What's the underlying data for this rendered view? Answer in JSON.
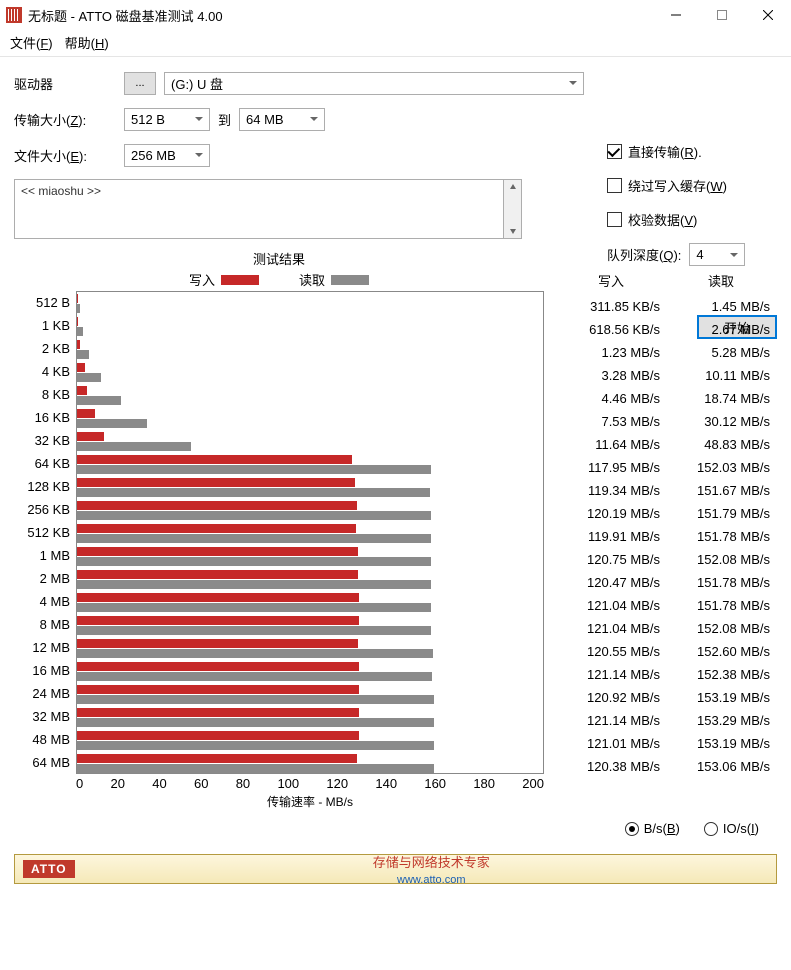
{
  "window": {
    "title": "无标题 - ATTO 磁盘基准测试 4.00"
  },
  "menu": {
    "file": "文件(F)",
    "help": "帮助(H)"
  },
  "form": {
    "drive_label": "驱动器",
    "browse": "...",
    "drive_value": "(G:) U 盘",
    "xfer_label": "传输大小(Z):",
    "xfer_from": "512 B",
    "to_label": "到",
    "xfer_to": "64 MB",
    "file_label": "文件大小(E):",
    "file_value": "256 MB"
  },
  "opts": {
    "direct": "直接传输(R).",
    "bypass": "绕过写入缓存(W)",
    "verify": "校验数据(V)",
    "qd_label": "队列深度(Q):",
    "qd_value": "4"
  },
  "desc": {
    "text": "<< miaoshu >>"
  },
  "start": "开始",
  "chart": {
    "title": "测试结果",
    "write_label": "写入",
    "read_label": "读取",
    "write_color": "#c62828",
    "read_color": "#8a8a8a",
    "xlabel": "传输速率 - MB/s",
    "xmax": 200,
    "xticks": [
      "0",
      "20",
      "40",
      "60",
      "80",
      "100",
      "120",
      "140",
      "160",
      "180",
      "200"
    ],
    "rows": [
      {
        "label": "512 B",
        "write_val": 0.31,
        "read_val": 1.45,
        "write_txt": "311.85 KB/s",
        "read_txt": "1.45 MB/s"
      },
      {
        "label": "1 KB",
        "write_val": 0.62,
        "read_val": 2.67,
        "write_txt": "618.56 KB/s",
        "read_txt": "2.67 MB/s"
      },
      {
        "label": "2 KB",
        "write_val": 1.23,
        "read_val": 5.28,
        "write_txt": "1.23 MB/s",
        "read_txt": "5.28 MB/s"
      },
      {
        "label": "4 KB",
        "write_val": 3.28,
        "read_val": 10.11,
        "write_txt": "3.28 MB/s",
        "read_txt": "10.11 MB/s"
      },
      {
        "label": "8 KB",
        "write_val": 4.46,
        "read_val": 18.74,
        "write_txt": "4.46 MB/s",
        "read_txt": "18.74 MB/s"
      },
      {
        "label": "16 KB",
        "write_val": 7.53,
        "read_val": 30.12,
        "write_txt": "7.53 MB/s",
        "read_txt": "30.12 MB/s"
      },
      {
        "label": "32 KB",
        "write_val": 11.64,
        "read_val": 48.83,
        "write_txt": "11.64 MB/s",
        "read_txt": "48.83 MB/s"
      },
      {
        "label": "64 KB",
        "write_val": 117.95,
        "read_val": 152.03,
        "write_txt": "117.95 MB/s",
        "read_txt": "152.03 MB/s"
      },
      {
        "label": "128 KB",
        "write_val": 119.34,
        "read_val": 151.67,
        "write_txt": "119.34 MB/s",
        "read_txt": "151.67 MB/s"
      },
      {
        "label": "256 KB",
        "write_val": 120.19,
        "read_val": 151.79,
        "write_txt": "120.19 MB/s",
        "read_txt": "151.79 MB/s"
      },
      {
        "label": "512 KB",
        "write_val": 119.91,
        "read_val": 151.78,
        "write_txt": "119.91 MB/s",
        "read_txt": "151.78 MB/s"
      },
      {
        "label": "1 MB",
        "write_val": 120.75,
        "read_val": 152.08,
        "write_txt": "120.75 MB/s",
        "read_txt": "152.08 MB/s"
      },
      {
        "label": "2 MB",
        "write_val": 120.47,
        "read_val": 151.78,
        "write_txt": "120.47 MB/s",
        "read_txt": "151.78 MB/s"
      },
      {
        "label": "4 MB",
        "write_val": 121.04,
        "read_val": 151.78,
        "write_txt": "121.04 MB/s",
        "read_txt": "151.78 MB/s"
      },
      {
        "label": "8 MB",
        "write_val": 121.04,
        "read_val": 152.08,
        "write_txt": "121.04 MB/s",
        "read_txt": "152.08 MB/s"
      },
      {
        "label": "12 MB",
        "write_val": 120.55,
        "read_val": 152.6,
        "write_txt": "120.55 MB/s",
        "read_txt": "152.60 MB/s"
      },
      {
        "label": "16 MB",
        "write_val": 121.14,
        "read_val": 152.38,
        "write_txt": "121.14 MB/s",
        "read_txt": "152.38 MB/s"
      },
      {
        "label": "24 MB",
        "write_val": 120.92,
        "read_val": 153.19,
        "write_txt": "120.92 MB/s",
        "read_txt": "153.19 MB/s"
      },
      {
        "label": "32 MB",
        "write_val": 121.14,
        "read_val": 153.29,
        "write_txt": "121.14 MB/s",
        "read_txt": "153.29 MB/s"
      },
      {
        "label": "48 MB",
        "write_val": 121.01,
        "read_val": 153.19,
        "write_txt": "121.01 MB/s",
        "read_txt": "153.19 MB/s"
      },
      {
        "label": "64 MB",
        "write_val": 120.38,
        "read_val": 153.06,
        "write_txt": "120.38 MB/s",
        "read_txt": "153.06 MB/s"
      }
    ]
  },
  "cols": {
    "write_hdr": "写入",
    "read_hdr": "读取"
  },
  "radio": {
    "bs": "B/s(B)",
    "ios": "IO/s(I)"
  },
  "footer": {
    "logo": "ATTO",
    "text": "存储与网络技术专家",
    "url": "www.atto.com"
  }
}
